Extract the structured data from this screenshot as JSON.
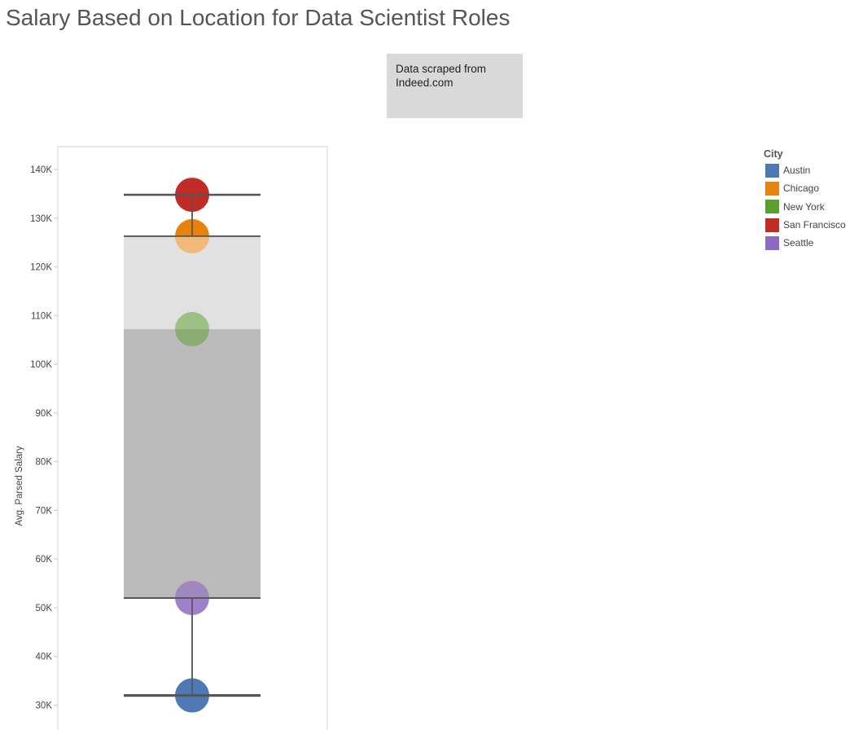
{
  "title": "Salary Based on Location for Data Scientist Roles",
  "annotation": {
    "text": "Data scraped from Indeed.com"
  },
  "legend": {
    "title": "City",
    "items": [
      {
        "label": "Austin",
        "color": "#4e79b4"
      },
      {
        "label": "Chicago",
        "color": "#e8820c"
      },
      {
        "label": "New York",
        "color": "#5aa02c"
      },
      {
        "label": "San Francisco",
        "color": "#c02c26"
      },
      {
        "label": "Seattle",
        "color": "#8e6bbf"
      }
    ]
  },
  "chart_data": {
    "type": "scatter",
    "subtype": "box-plot",
    "title": "Salary Based on Location for Data Scientist Roles",
    "ylabel": "Avg. Parsed Salary",
    "xlabel": "",
    "ylim": [
      28500,
      144500
    ],
    "yticks": [
      30000,
      40000,
      50000,
      60000,
      70000,
      80000,
      90000,
      100000,
      110000,
      120000,
      130000,
      140000
    ],
    "ytick_labels": [
      "30K",
      "40K",
      "50K",
      "60K",
      "70K",
      "80K",
      "90K",
      "100K",
      "110K",
      "120K",
      "130K",
      "140K"
    ],
    "points": [
      {
        "city": "Austin",
        "value": 32000,
        "color": "#4e79b4"
      },
      {
        "city": "Chicago",
        "value": 126300,
        "color": "#e8820c"
      },
      {
        "city": "New York",
        "value": 107200,
        "color": "#5aa02c"
      },
      {
        "city": "San Francisco",
        "value": 134800,
        "color": "#c02c26"
      },
      {
        "city": "Seattle",
        "value": 52000,
        "color": "#8e6bbf"
      }
    ],
    "box": {
      "min": 32000,
      "q1": 52000,
      "median": 107200,
      "q3": 126300,
      "max": 134800
    },
    "grid": false,
    "legend_position": "top-right"
  }
}
